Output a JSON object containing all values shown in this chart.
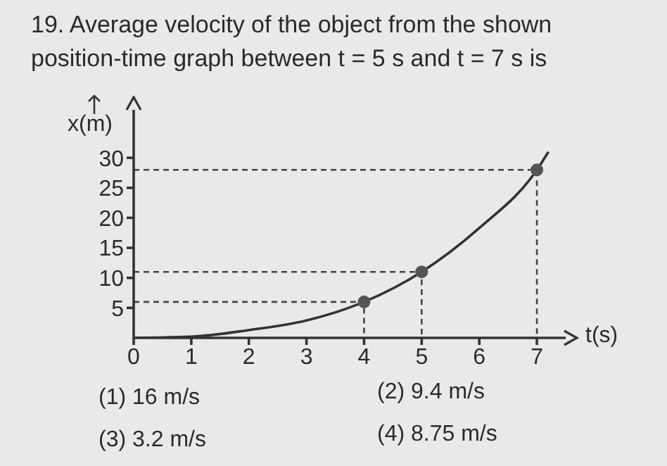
{
  "chart_data": {
    "type": "line",
    "title": "19.  Average velocity of the object from the shown position-time graph between t = 5 s and t = 7 s is",
    "xlabel": "t(s)",
    "ylabel": "x(m)",
    "annotations": [
      "(1)  16 m/s",
      "(2)  9.4 m/s",
      "(3)  3.2 m/s",
      "(4)  8.75 m/s"
    ],
    "xlim": [
      0,
      7.5
    ],
    "xticks": [
      0,
      1,
      2,
      3,
      4,
      5,
      6,
      7
    ],
    "ylim": [
      0,
      38
    ],
    "yticks": [
      5,
      10,
      15,
      20,
      25,
      30
    ],
    "grid": false,
    "series": [
      {
        "type": "line",
        "x": [
          0,
          1,
          2,
          3,
          4,
          5,
          6,
          7,
          7.2
        ],
        "values": [
          0,
          0.2,
          1.3,
          2.9,
          6,
          11,
          18.3,
          28,
          31
        ],
        "color": "#333333",
        "line_style": "solid"
      },
      {
        "type": "line",
        "x": [
          0,
          4,
          4
        ],
        "values": [
          6,
          6,
          0
        ],
        "color": "#444444",
        "line_style": "dashed"
      },
      {
        "type": "line",
        "x": [
          0,
          5,
          5
        ],
        "values": [
          11,
          11,
          0
        ],
        "color": "#444444",
        "line_style": "dashed"
      },
      {
        "type": "line",
        "x": [
          0,
          7,
          7
        ],
        "values": [
          28,
          28,
          0
        ],
        "color": "#444444",
        "line_style": "dashed"
      },
      {
        "type": "scatter",
        "x": [
          4,
          5,
          7
        ],
        "values": [
          6,
          11,
          28
        ],
        "color": "#555555",
        "marker": "circle"
      }
    ]
  }
}
